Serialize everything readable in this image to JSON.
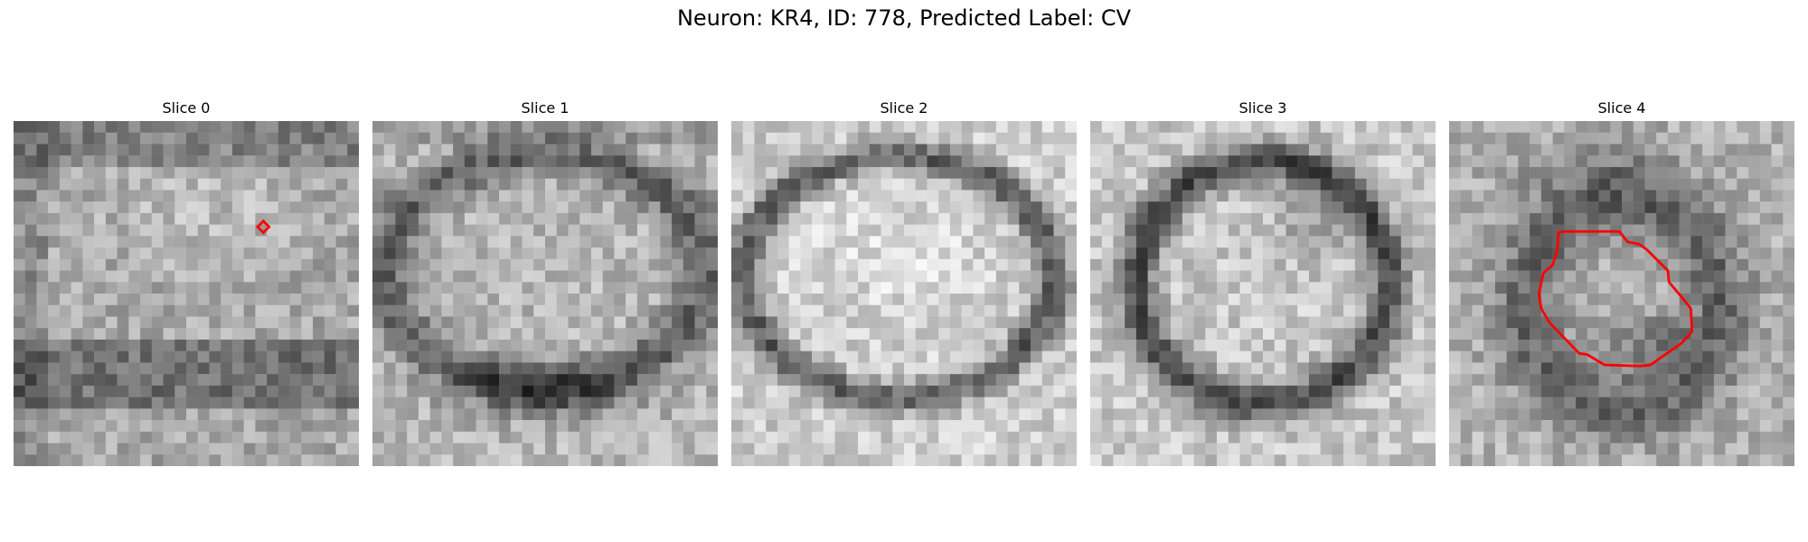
{
  "figure": {
    "title": "Neuron: KR4, ID: 778, Predicted Label: CV"
  },
  "panels": [
    {
      "title": "Slice 0"
    },
    {
      "title": "Slice 1"
    },
    {
      "title": "Slice 2"
    },
    {
      "title": "Slice 3"
    },
    {
      "title": "Slice 4"
    }
  ],
  "colors": {
    "background": "#ffffff",
    "contour": "#ff0000",
    "colormap": "grayscale"
  }
}
